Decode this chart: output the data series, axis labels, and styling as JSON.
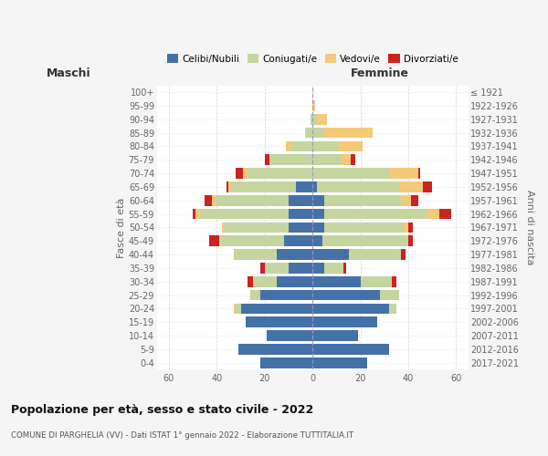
{
  "age_groups": [
    "0-4",
    "5-9",
    "10-14",
    "15-19",
    "20-24",
    "25-29",
    "30-34",
    "35-39",
    "40-44",
    "45-49",
    "50-54",
    "55-59",
    "60-64",
    "65-69",
    "70-74",
    "75-79",
    "80-84",
    "85-89",
    "90-94",
    "95-99",
    "100+"
  ],
  "birth_years": [
    "2017-2021",
    "2012-2016",
    "2007-2011",
    "2002-2006",
    "1997-2001",
    "1992-1996",
    "1987-1991",
    "1982-1986",
    "1977-1981",
    "1972-1976",
    "1967-1971",
    "1962-1966",
    "1957-1961",
    "1952-1956",
    "1947-1951",
    "1942-1946",
    "1937-1941",
    "1932-1936",
    "1927-1931",
    "1922-1926",
    "≤ 1921"
  ],
  "male": {
    "celibi": [
      22,
      31,
      19,
      28,
      30,
      22,
      15,
      10,
      15,
      12,
      10,
      10,
      10,
      7,
      0,
      0,
      0,
      0,
      0,
      0,
      0
    ],
    "coniugati": [
      0,
      0,
      0,
      0,
      2,
      4,
      10,
      10,
      18,
      27,
      27,
      37,
      30,
      27,
      27,
      18,
      9,
      3,
      1,
      0,
      0
    ],
    "vedovi": [
      0,
      0,
      0,
      0,
      1,
      0,
      0,
      0,
      0,
      0,
      1,
      2,
      2,
      1,
      2,
      0,
      2,
      0,
      0,
      0,
      0
    ],
    "divorziati": [
      0,
      0,
      0,
      0,
      0,
      0,
      2,
      2,
      0,
      4,
      0,
      1,
      3,
      1,
      3,
      2,
      0,
      0,
      0,
      0,
      0
    ]
  },
  "female": {
    "nubili": [
      23,
      32,
      19,
      27,
      32,
      28,
      20,
      5,
      15,
      4,
      5,
      5,
      5,
      2,
      0,
      0,
      0,
      0,
      0,
      0,
      0
    ],
    "coniugate": [
      0,
      0,
      0,
      0,
      3,
      8,
      13,
      8,
      22,
      36,
      33,
      43,
      32,
      34,
      32,
      12,
      11,
      5,
      2,
      0,
      0
    ],
    "vedove": [
      0,
      0,
      0,
      0,
      0,
      0,
      0,
      0,
      0,
      0,
      2,
      5,
      4,
      10,
      12,
      4,
      10,
      20,
      4,
      1,
      0
    ],
    "divorziate": [
      0,
      0,
      0,
      0,
      0,
      0,
      2,
      1,
      2,
      2,
      2,
      5,
      3,
      4,
      1,
      2,
      0,
      0,
      0,
      0,
      0
    ]
  },
  "colors": {
    "celibi": "#4472a8",
    "coniugati": "#c5d5a0",
    "vedovi": "#f5c97a",
    "divorziati": "#cc2222"
  },
  "xlim": 65,
  "title": "Popolazione per età, sesso e stato civile - 2022",
  "subtitle": "COMUNE DI PARGHELIA (VV) - Dati ISTAT 1° gennaio 2022 - Elaborazione TUTTITALIA.IT",
  "ylabel_left": "Fasce di età",
  "ylabel_right": "Anni di nascita",
  "xlabel_left": "Maschi",
  "xlabel_right": "Femmine",
  "bg_color": "#f5f5f5",
  "plot_bg": "#ffffff"
}
